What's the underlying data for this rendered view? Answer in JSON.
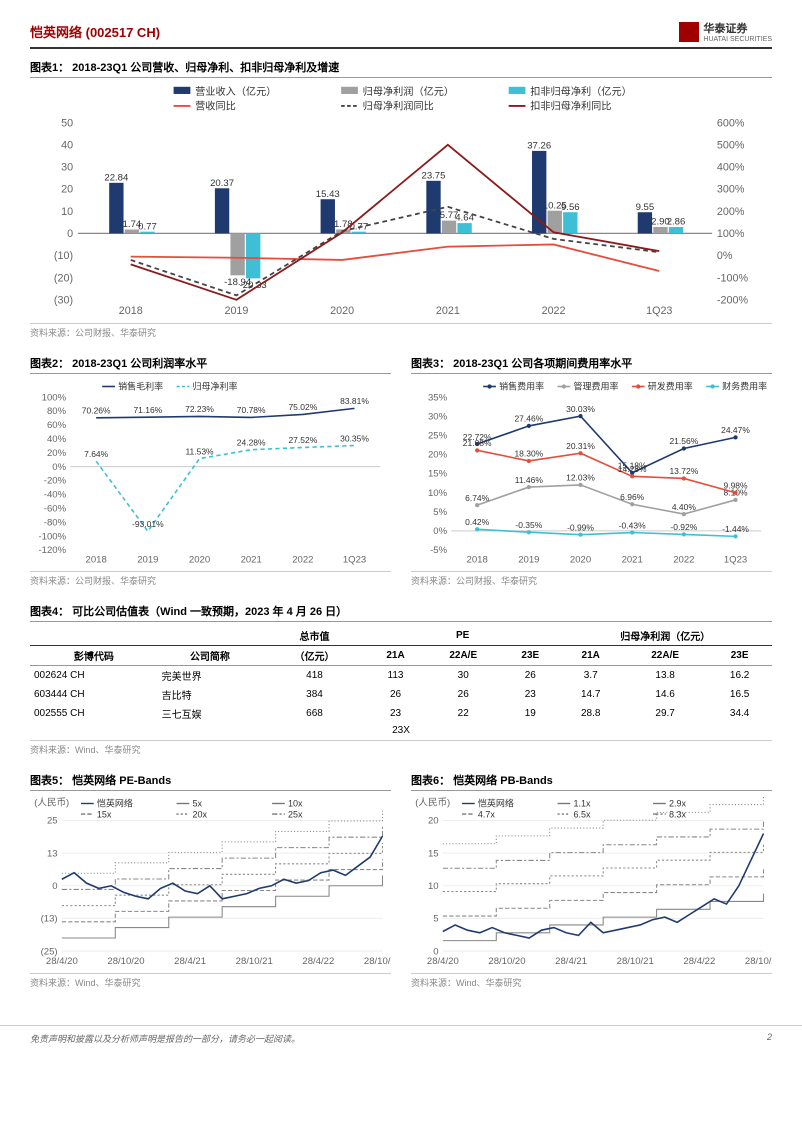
{
  "header": {
    "company": "恺英网络 (002517 CH)",
    "broker": "华泰证券",
    "broker_en": "HUATAI SECURITIES"
  },
  "chart1": {
    "title": "图表1：  2018-23Q1 公司营收、归母净利、扣非归母净利及增速",
    "source": "资料来源：公司财报、华泰研究",
    "legend": [
      "营业收入（亿元）",
      "归母净利润（亿元）",
      "扣非归母净利（亿元）",
      "营收同比",
      "归母净利润同比",
      "扣非归母净利同比"
    ],
    "colors": [
      "#1f3a6e",
      "#a0a0a0",
      "#3fbfd6",
      "#e74c3c",
      "#444",
      "#8b1a1a"
    ],
    "categories": [
      "2018",
      "2019",
      "2020",
      "2021",
      "2022",
      "1Q23"
    ],
    "left_ticks": [
      50,
      40,
      30,
      20,
      10,
      0,
      -10,
      -20,
      -30
    ],
    "right_ticks": [
      "600%",
      "500%",
      "400%",
      "300%",
      "200%",
      "100%",
      "0%",
      "-100%",
      "-200%"
    ],
    "bars": [
      {
        "vals": [
          22.84,
          20.37,
          15.43,
          23.75,
          37.26,
          9.55
        ]
      },
      {
        "vals": [
          1.74,
          -18.94,
          1.78,
          5.77,
          10.25,
          2.9
        ]
      },
      {
        "vals": [
          0.77,
          -20.33,
          0.77,
          4.64,
          9.56,
          2.86
        ]
      }
    ],
    "labels": [
      [
        "22.84",
        "1.74",
        "0.77"
      ],
      [
        "20.37",
        "-18.94",
        "-20.33"
      ],
      [
        "15.43",
        "1.78",
        "0.77"
      ],
      [
        "23.75",
        "5.77",
        "4.64"
      ],
      [
        "37.26",
        "10.25",
        "9.56"
      ],
      [
        "9.55",
        "2.90",
        "2.86"
      ]
    ]
  },
  "chart2": {
    "title": "图表2：  2018-23Q1 公司利润率水平",
    "source": "资料来源：公司财报、华泰研究",
    "legend": [
      "销售毛利率",
      "归母净利率"
    ],
    "colors": [
      "#1f3a6e",
      "#3fbfd6"
    ],
    "categories": [
      "2018",
      "2019",
      "2020",
      "2021",
      "2022",
      "1Q23"
    ],
    "yticks": [
      "100%",
      "80%",
      "60%",
      "40%",
      "20%",
      "0%",
      "-20%",
      "-40%",
      "-60%",
      "-80%",
      "-100%",
      "-120%"
    ],
    "series": [
      [
        70.26,
        71.16,
        72.23,
        70.78,
        75.02,
        83.81
      ],
      [
        7.64,
        -93.01,
        11.53,
        24.28,
        27.52,
        30.35
      ]
    ],
    "labels": [
      [
        "70.26%",
        "71.16%",
        "72.23%",
        "70.78%",
        "75.02%",
        "83.81%"
      ],
      [
        "7.64%",
        "-93.01%",
        "11.53%",
        "24.28%",
        "27.52%",
        "30.35%"
      ]
    ]
  },
  "chart3": {
    "title": "图表3：  2018-23Q1 公司各项期间费用率水平",
    "source": "资料来源：公司财报、华泰研究",
    "legend": [
      "销售费用率",
      "管理费用率",
      "研发费用率",
      "财务费用率"
    ],
    "colors": [
      "#1f3a6e",
      "#a0a0a0",
      "#e74c3c",
      "#3fbfd6"
    ],
    "categories": [
      "2018",
      "2019",
      "2020",
      "2021",
      "2022",
      "1Q23"
    ],
    "yticks": [
      "35%",
      "30%",
      "25%",
      "20%",
      "15%",
      "10%",
      "5%",
      "0%",
      "-5%"
    ],
    "series": [
      [
        22.72,
        27.46,
        30.03,
        15.18,
        21.56,
        24.47
      ],
      [
        6.74,
        11.46,
        12.03,
        6.96,
        4.4,
        8.1
      ],
      [
        21.08,
        18.3,
        20.31,
        14.28,
        13.72,
        9.98
      ],
      [
        0.42,
        -0.35,
        -0.99,
        -0.43,
        -0.92,
        -1.44
      ]
    ],
    "point_labels": [
      [
        "22.72%",
        "27.46%",
        "30.03%",
        "15.18%",
        "21.56%",
        "24.47%"
      ],
      [
        "6.74%",
        "11.46%",
        "12.03%",
        "6.96%",
        "4.40%",
        "8.10%"
      ],
      [
        "21.08%",
        "18.30%",
        "20.31%",
        "14.28%",
        "13.72%",
        "9.98%"
      ],
      [
        "0.42%",
        "-0.35%",
        "-0.99%",
        "-0.43%",
        "-0.92%",
        "-1.44%"
      ]
    ]
  },
  "table4": {
    "title": "图表4：  可比公司估值表（Wind 一致预期，2023 年 4 月 26 日）",
    "source": "资料来源：Wind、华泰研究",
    "top_headers": [
      "",
      "",
      "总市值",
      "PE",
      "",
      "",
      "归母净利润（亿元）",
      "",
      ""
    ],
    "sub_headers": [
      "彭博代码",
      "公司简称",
      "（亿元）",
      "21A",
      "22A/E",
      "23E",
      "21A",
      "22A/E",
      "23E"
    ],
    "rows": [
      [
        "002624 CH",
        "完美世界",
        "418",
        "113",
        "30",
        "26",
        "3.7",
        "13.8",
        "16.2"
      ],
      [
        "603444 CH",
        "吉比特",
        "384",
        "26",
        "26",
        "23",
        "14.7",
        "14.6",
        "16.5"
      ],
      [
        "002555 CH",
        "三七互娱",
        "668",
        "23",
        "22",
        "19",
        "28.8",
        "29.7",
        "34.4"
      ]
    ],
    "summary": "23X"
  },
  "chart5": {
    "title": "图表5：  恺英网络 PE-Bands",
    "source": "资料来源：Wind、华泰研究",
    "ylabel": "(人民币)",
    "legend": [
      "恺英网络",
      "5x",
      "10x",
      "15x",
      "20x",
      "25x"
    ],
    "xticks": [
      "28/4/20",
      "28/10/20",
      "28/4/21",
      "28/10/21",
      "28/4/22",
      "28/10/22"
    ],
    "yticks": [
      "25",
      "13",
      "0",
      "(13)",
      "(25)"
    ]
  },
  "chart6": {
    "title": "图表6：  恺英网络 PB-Bands",
    "source": "资料来源：Wind、华泰研究",
    "ylabel": "(人民币)",
    "legend": [
      "恺英网络",
      "1.1x",
      "2.9x",
      "4.7x",
      "6.5x",
      "8.3x"
    ],
    "xticks": [
      "28/4/20",
      "28/10/20",
      "28/4/21",
      "28/10/21",
      "28/4/22",
      "28/10/22"
    ],
    "yticks": [
      "20",
      "15",
      "10",
      "5",
      "0"
    ]
  },
  "footer": {
    "disclaimer": "免责声明和披露以及分析师声明是报告的一部分，请务必一起阅读。",
    "page": "2"
  }
}
